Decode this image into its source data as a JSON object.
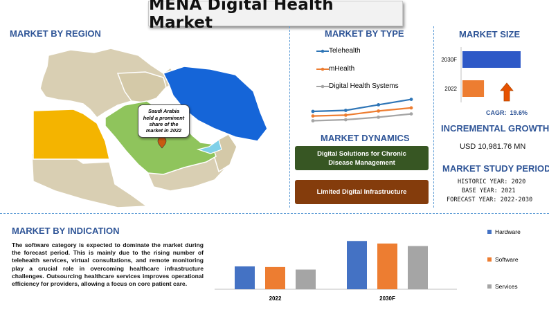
{
  "title": "MENA Digital Health Market",
  "region": {
    "heading": "MARKET BY REGION",
    "callout": [
      "Saudi Arabia",
      "held a prominent",
      "share of the",
      "market in 2022"
    ],
    "colors": {
      "saudi": "#8fc45c",
      "iran": "#1565d8",
      "egypt": "#f4b400",
      "uae": "#7fd0e8",
      "other": "#d9cfb3"
    }
  },
  "type": {
    "heading": "MARKET BY TYPE",
    "legend": [
      "Telehealth",
      "mHealth",
      "Digital Health Systems"
    ],
    "colors": [
      "#2e75b6",
      "#ed7d31",
      "#a5a5a5"
    ]
  },
  "dynamics": {
    "heading": "MARKET DYNAMICS",
    "driver": "Digital Solutions for Chronic Disease Management",
    "restraint": "Limited Digital Infrastructure",
    "driver_color": "#375623",
    "restraint_color": "#843c0c"
  },
  "size": {
    "heading": "MARKET SIZE",
    "cagr": "CAGR:  19.6%",
    "arrow_color": "#e65100"
  },
  "growth": {
    "heading": "INCREMENTAL GROWTH",
    "value": "USD 10,981.76 MN"
  },
  "period": {
    "heading": "MARKET STUDY PERIOD",
    "historic": "HISTORIC YEAR: 2020",
    "base": "BASE YEAR: 2021",
    "forecast": "FORECAST YEAR: 2022-2030"
  },
  "indication": {
    "heading": "MARKET BY INDICATION",
    "paragraph": "The software category is expected to dominate the market during the forecast period. This is mainly due to the rising number of telehealth services, virtual consultations, and remote monitoring play a crucial role in overcoming healthcare infrastructure challenges. Outsourcing healthcare services improves operational efficiency for providers, allowing a focus on core patient care."
  },
  "chart_data": [
    {
      "type": "line",
      "x": [
        1,
        2,
        3,
        4
      ],
      "series": [
        {
          "name": "Telehealth",
          "values": [
            7.0,
            7.5,
            10.2,
            12.8
          ],
          "color": "#2e75b6"
        },
        {
          "name": "mHealth",
          "values": [
            4.8,
            5.2,
            7.2,
            8.7
          ],
          "color": "#ed7d31"
        },
        {
          "name": "Digital Health Systems",
          "values": [
            2.5,
            3.0,
            4.2,
            5.8
          ],
          "color": "#a5a5a5"
        }
      ],
      "ylim": [
        0,
        16
      ]
    },
    {
      "type": "bar",
      "orientation": "horizontal",
      "categories": [
        "2030F",
        "2022"
      ],
      "values": [
        100,
        37
      ],
      "colors": [
        "#2e59c7",
        "#ed7d31"
      ],
      "xlim": [
        0,
        100
      ]
    },
    {
      "type": "bar",
      "categories": [
        "2022",
        "2030F"
      ],
      "series": [
        {
          "name": "Hardware",
          "values": [
            36,
            76
          ],
          "color": "#4472c4"
        },
        {
          "name": "Software",
          "values": [
            35,
            72
          ],
          "color": "#ed7d31"
        },
        {
          "name": "Services",
          "values": [
            31,
            68
          ],
          "color": "#a5a5a5"
        }
      ],
      "ylim": [
        0,
        85
      ]
    }
  ]
}
